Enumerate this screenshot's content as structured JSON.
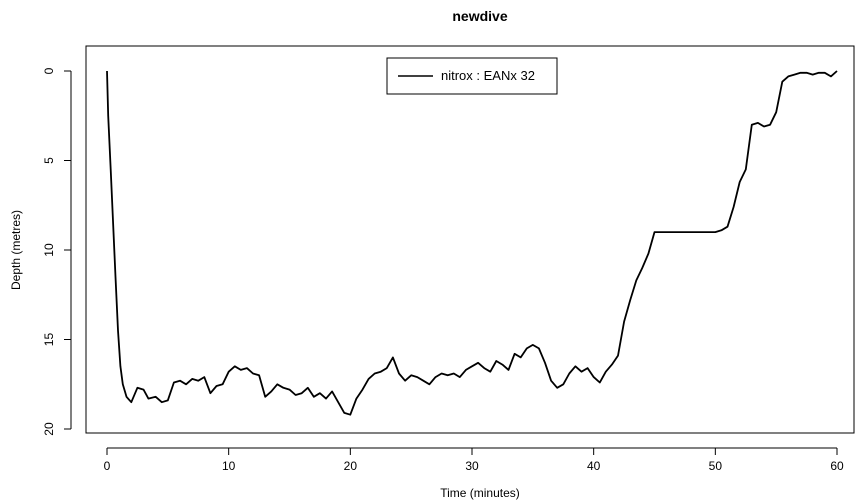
{
  "chart_data": {
    "type": "line",
    "title": "newdive",
    "xlabel": "Time (minutes)",
    "ylabel": "Depth (metres)",
    "xlim": [
      0,
      60
    ],
    "ylim": [
      0,
      20
    ],
    "y_inverted": true,
    "grid": false,
    "legend_position": "top-center",
    "x_ticks": [
      0,
      10,
      20,
      30,
      40,
      50,
      60
    ],
    "y_ticks": [
      0,
      5,
      10,
      15,
      20
    ],
    "series": [
      {
        "name": "nitrox : EANx 32",
        "color": "#000000",
        "x": [
          0,
          0.1,
          0.3,
          0.5,
          0.7,
          0.9,
          1.1,
          1.3,
          1.6,
          2,
          2.5,
          3,
          3.4,
          4,
          4.5,
          5,
          5.5,
          6,
          6.5,
          7,
          7.5,
          8,
          8.5,
          9,
          9.5,
          10,
          10.5,
          11,
          11.5,
          12,
          12.5,
          13,
          13.5,
          14,
          14.5,
          15,
          15.5,
          16,
          16.5,
          17,
          17.5,
          18,
          18.5,
          19,
          19.5,
          20,
          20.5,
          21,
          21.5,
          22,
          22.5,
          23,
          23.5,
          24,
          24.5,
          25,
          25.5,
          26,
          26.5,
          27,
          27.5,
          28,
          28.5,
          29,
          29.5,
          30,
          30.5,
          31,
          31.5,
          32,
          32.5,
          33,
          33.5,
          34,
          34.5,
          35,
          35.5,
          36,
          36.5,
          37,
          37.5,
          38,
          38.5,
          39,
          39.5,
          40,
          40.5,
          41,
          41.5,
          42,
          42.5,
          43,
          43.5,
          44,
          44.5,
          45,
          46,
          47,
          48,
          49,
          50,
          50.5,
          51,
          51.5,
          52,
          52.5,
          53,
          53.5,
          54,
          54.5,
          55,
          55.5,
          56,
          56.5,
          57,
          57.5,
          58,
          58.5,
          59,
          59.5,
          60
        ],
        "y": [
          0,
          2.5,
          5.5,
          8.5,
          11.5,
          14.5,
          16.5,
          17.5,
          18.2,
          18.5,
          17.7,
          17.8,
          18.3,
          18.2,
          18.5,
          18.4,
          17.4,
          17.3,
          17.5,
          17.2,
          17.3,
          17.1,
          18.0,
          17.6,
          17.5,
          16.8,
          16.5,
          16.7,
          16.6,
          16.9,
          17.0,
          18.2,
          17.9,
          17.5,
          17.7,
          17.8,
          18.1,
          18.0,
          17.7,
          18.2,
          18.0,
          18.3,
          17.9,
          18.5,
          19.1,
          19.2,
          18.3,
          17.8,
          17.2,
          16.9,
          16.8,
          16.6,
          16.0,
          16.9,
          17.3,
          17.0,
          17.1,
          17.3,
          17.5,
          17.1,
          16.9,
          17.0,
          16.9,
          17.1,
          16.7,
          16.5,
          16.3,
          16.6,
          16.8,
          16.2,
          16.4,
          16.7,
          15.8,
          16.0,
          15.5,
          15.3,
          15.5,
          16.3,
          17.3,
          17.7,
          17.5,
          16.9,
          16.5,
          16.8,
          16.6,
          17.1,
          17.4,
          16.8,
          16.4,
          15.9,
          14.0,
          12.8,
          11.7,
          11.0,
          10.2,
          9.0,
          9.0,
          9.0,
          9.0,
          9.0,
          9.0,
          8.9,
          8.7,
          7.6,
          6.2,
          5.5,
          3.0,
          2.9,
          3.1,
          3.0,
          2.3,
          0.6,
          0.3,
          0.2,
          0.1,
          0.1,
          0.2,
          0.1,
          0.1,
          0.3,
          0.0
        ]
      }
    ]
  }
}
